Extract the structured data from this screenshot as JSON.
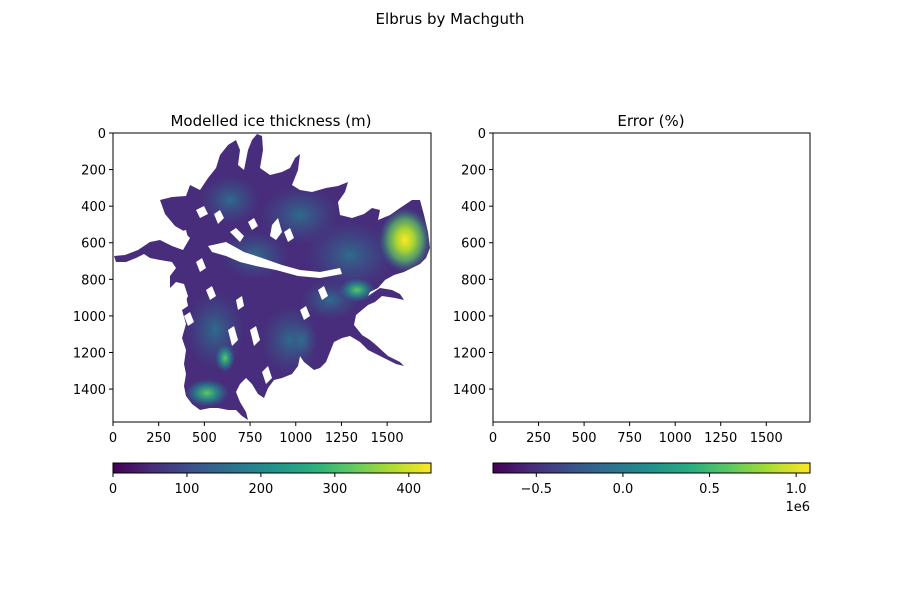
{
  "figure": {
    "suptitle": "Elbrus by Machguth"
  },
  "chart_data": [
    {
      "type": "heatmap",
      "title": "Modelled ice thickness (m)",
      "x_ticks": [
        0,
        250,
        500,
        750,
        1000,
        1250,
        1500
      ],
      "y_ticks": [
        0,
        200,
        400,
        600,
        800,
        1000,
        1200,
        1400
      ],
      "xlim": [
        0,
        1740
      ],
      "ylim": [
        1580,
        0
      ],
      "y_inverted": true,
      "colormap": "viridis",
      "colorbar": {
        "orientation": "horizontal",
        "range": [
          0,
          430
        ],
        "ticks": [
          "0",
          "100",
          "200",
          "300",
          "400"
        ],
        "tick_values": [
          0,
          100,
          200,
          300,
          400
        ]
      },
      "hotspots": [
        {
          "x": 1620,
          "y": 580,
          "value": 420
        },
        {
          "x": 1350,
          "y": 860,
          "value": 330
        },
        {
          "x": 520,
          "y": 1420,
          "value": 300
        },
        {
          "x": 620,
          "y": 1230,
          "value": 260
        }
      ]
    },
    {
      "type": "heatmap",
      "title": "Error (%)",
      "x_ticks": [
        0,
        250,
        500,
        750,
        1000,
        1250,
        1500
      ],
      "y_ticks": [
        0,
        200,
        400,
        600,
        800,
        1000,
        1200,
        1400
      ],
      "xlim": [
        0,
        1740
      ],
      "ylim": [
        1580,
        0
      ],
      "y_inverted": true,
      "colormap": "viridis",
      "image_empty": true,
      "colorbar": {
        "orientation": "horizontal",
        "range": [
          -750000,
          1080000
        ],
        "ticks": [
          "−0.5",
          "0.0",
          "0.5",
          "1.0"
        ],
        "tick_values": [
          -500000,
          0,
          500000,
          1000000
        ],
        "offset_text": "1e6"
      }
    }
  ]
}
